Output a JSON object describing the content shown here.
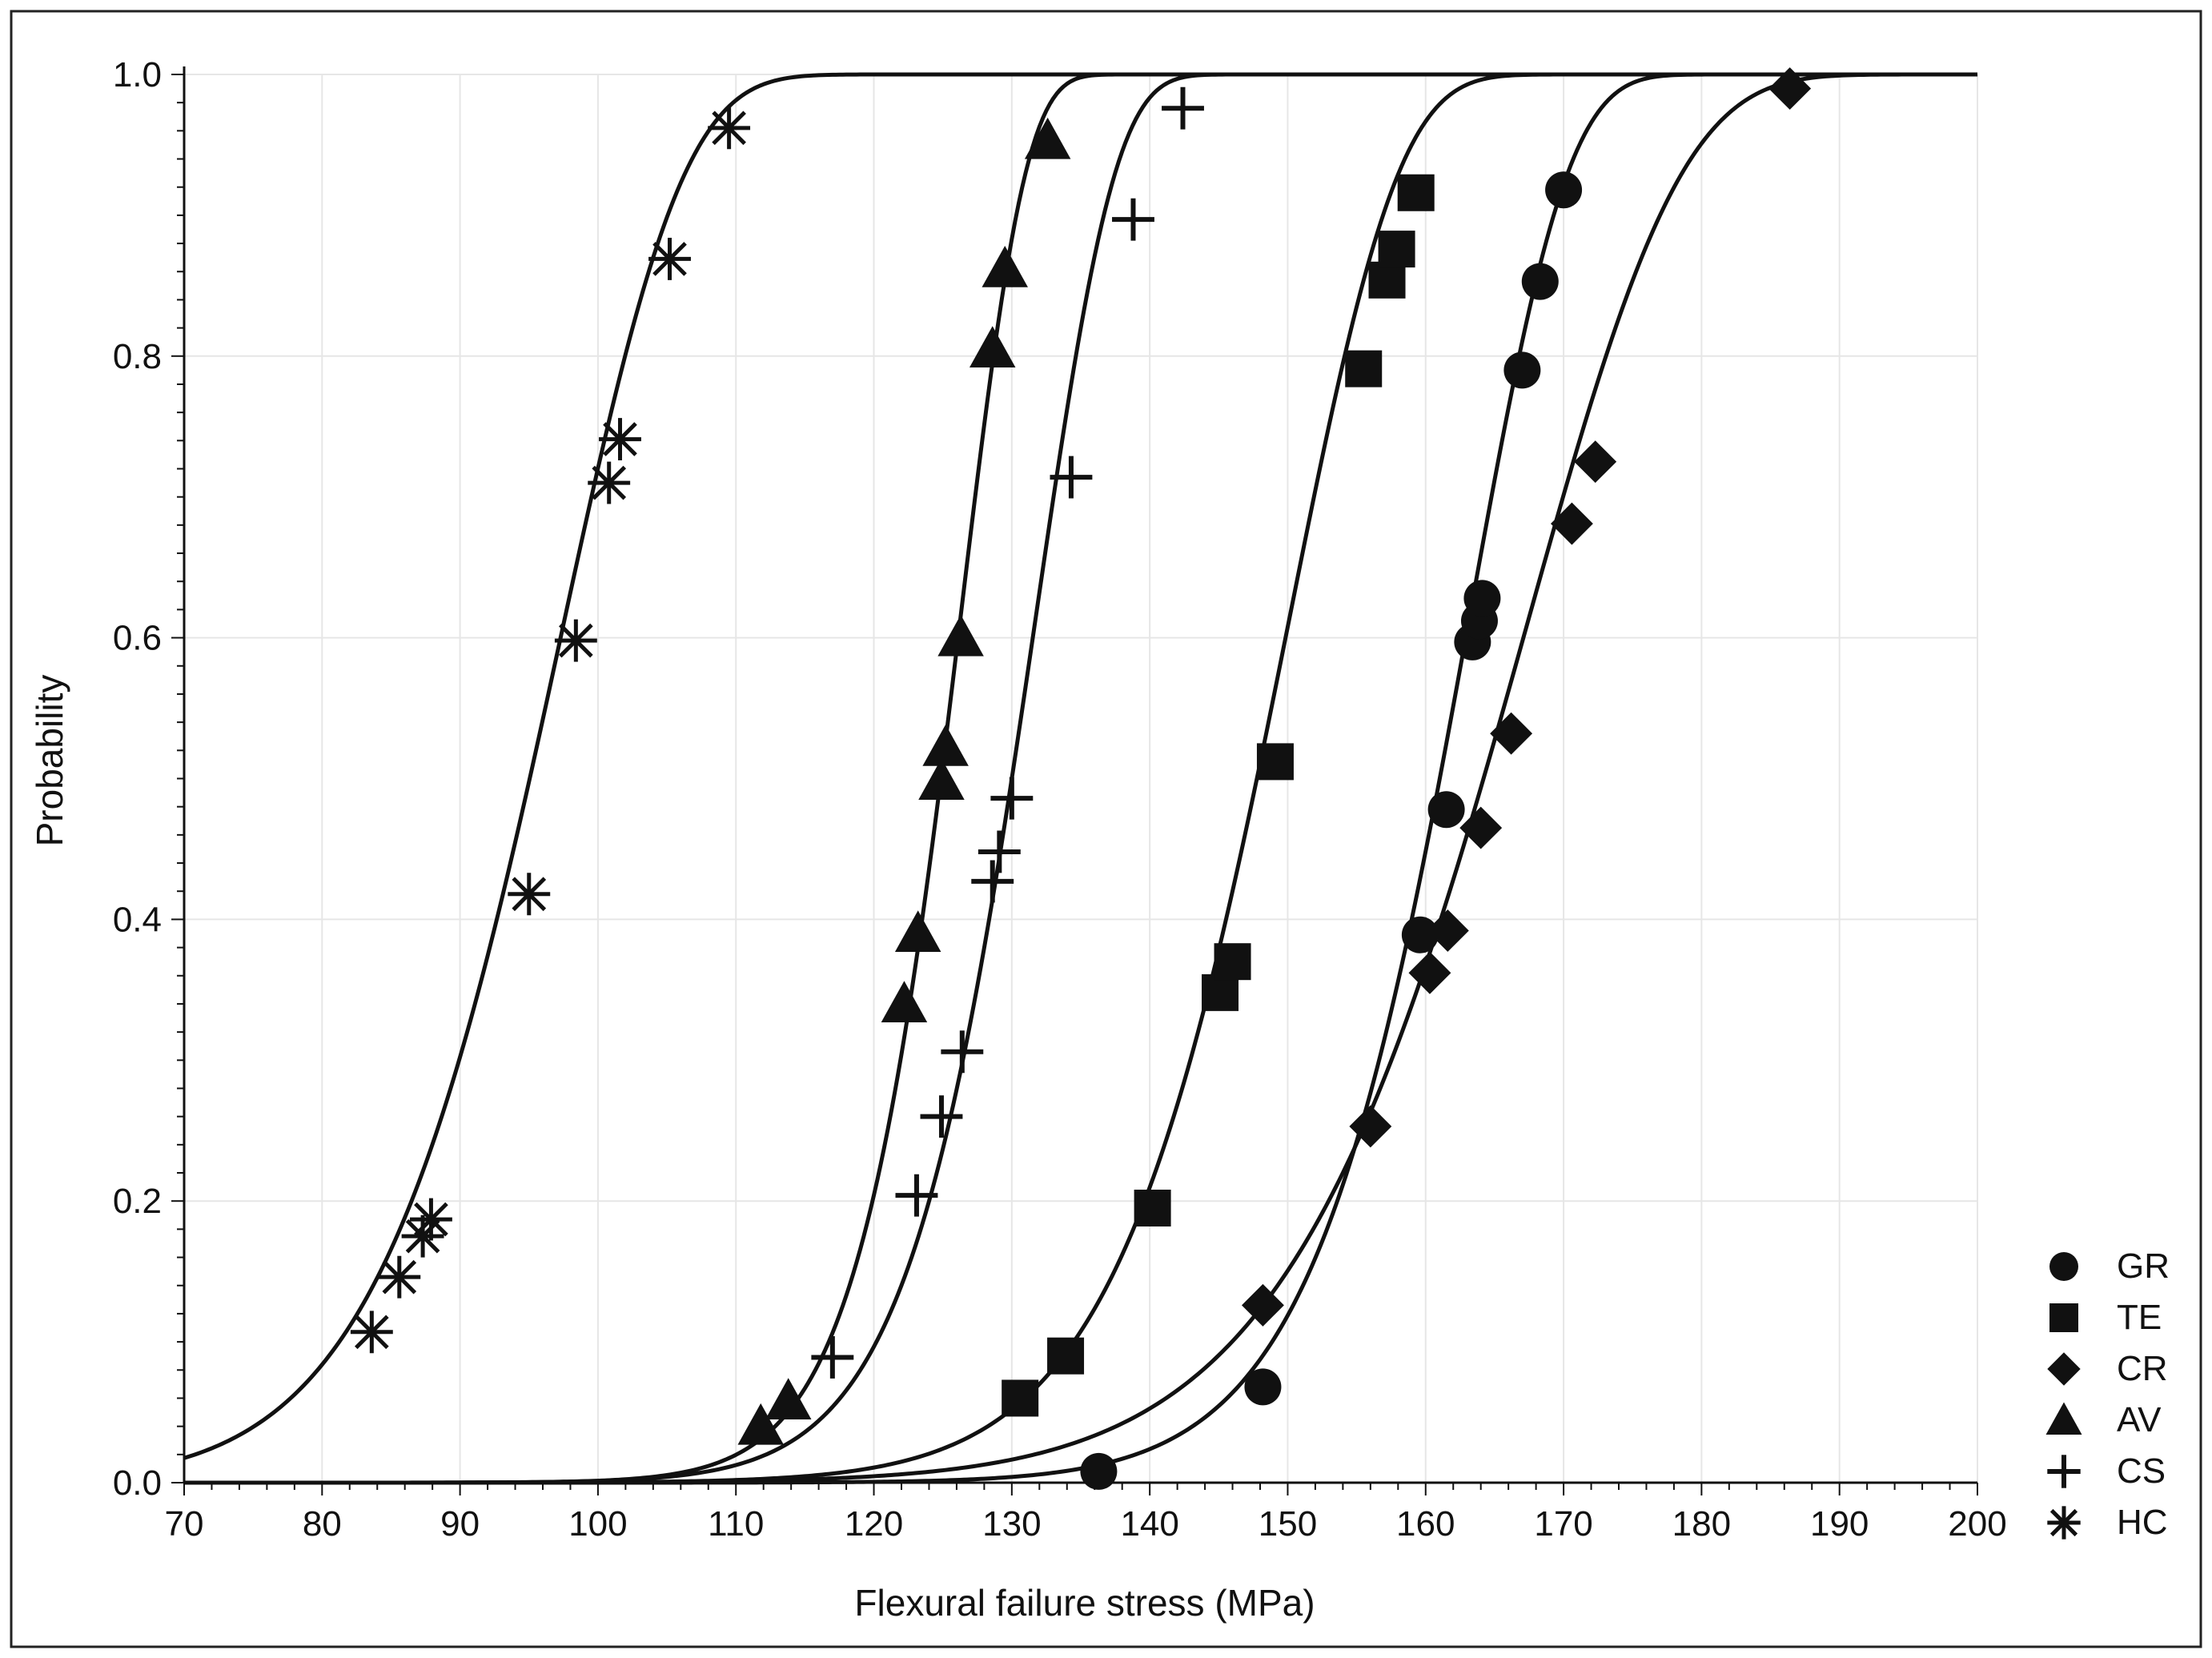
{
  "chart_data": {
    "type": "scatter",
    "xlabel": "Flexural failure stress (MPa)",
    "ylabel": "Probability",
    "xlim": [
      70,
      200
    ],
    "ylim": [
      0,
      1
    ],
    "x_ticks": [
      "70",
      "80",
      "90",
      "100",
      "110",
      "120",
      "130",
      "140",
      "150",
      "160",
      "170",
      "180",
      "190",
      "200"
    ],
    "y_ticks": [
      "0.0",
      "0.2",
      "0.4",
      "0.6",
      "0.8",
      "1.0"
    ],
    "grid": true,
    "legend_position": "bottom-right",
    "series": [
      {
        "name": "GR",
        "marker": "circle",
        "weibull": {
          "scale": 163.5,
          "shape": 24
        },
        "points": [
          [
            136.3,
            0.008
          ],
          [
            148.2,
            0.068
          ],
          [
            159.6,
            0.389
          ],
          [
            161.5,
            0.478
          ],
          [
            163.4,
            0.597
          ],
          [
            163.9,
            0.612
          ],
          [
            164.1,
            0.628
          ],
          [
            167.0,
            0.79
          ],
          [
            168.3,
            0.853
          ],
          [
            170.0,
            0.918
          ]
        ]
      },
      {
        "name": "TE",
        "marker": "square",
        "weibull": {
          "scale": 150.5,
          "shape": 20
        },
        "points": [
          [
            130.6,
            0.06
          ],
          [
            133.9,
            0.09
          ],
          [
            140.2,
            0.195
          ],
          [
            145.1,
            0.348
          ],
          [
            146.0,
            0.37
          ],
          [
            149.1,
            0.512
          ],
          [
            155.5,
            0.791
          ],
          [
            157.2,
            0.854
          ],
          [
            157.9,
            0.876
          ],
          [
            159.3,
            0.916
          ]
        ]
      },
      {
        "name": "CR",
        "marker": "diamond",
        "weibull": {
          "scale": 168.0,
          "shape": 16
        },
        "points": [
          [
            148.2,
            0.126
          ],
          [
            156.0,
            0.253
          ],
          [
            161.6,
            0.392
          ],
          [
            160.3,
            0.362
          ],
          [
            164.0,
            0.465
          ],
          [
            166.2,
            0.532
          ],
          [
            170.6,
            0.681
          ],
          [
            172.3,
            0.725
          ],
          [
            186.4,
            0.99
          ]
        ]
      },
      {
        "name": "AV",
        "marker": "triangle",
        "weibull": {
          "scale": 126.5,
          "shape": 28
        },
        "points": [
          [
            111.8,
            0.04
          ],
          [
            113.8,
            0.058
          ],
          [
            122.2,
            0.34
          ],
          [
            123.2,
            0.39
          ],
          [
            124.9,
            0.498
          ],
          [
            125.2,
            0.522
          ],
          [
            126.3,
            0.6
          ],
          [
            128.6,
            0.805
          ],
          [
            129.5,
            0.862
          ],
          [
            132.6,
            0.953
          ]
        ]
      },
      {
        "name": "CS",
        "marker": "plus",
        "weibull": {
          "scale": 132.0,
          "shape": 24
        },
        "points": [
          [
            117.0,
            0.089
          ],
          [
            123.1,
            0.204
          ],
          [
            124.9,
            0.26
          ],
          [
            126.4,
            0.306
          ],
          [
            128.6,
            0.427
          ],
          [
            129.1,
            0.448
          ],
          [
            130.0,
            0.486
          ],
          [
            134.3,
            0.714
          ],
          [
            138.8,
            0.897
          ],
          [
            142.4,
            0.976
          ]
        ]
      },
      {
        "name": "HC",
        "marker": "asterisk",
        "weibull": {
          "scale": 98.0,
          "shape": 12
        },
        "points": [
          [
            83.6,
            0.107
          ],
          [
            85.6,
            0.146
          ],
          [
            87.3,
            0.175
          ],
          [
            87.9,
            0.187
          ],
          [
            95.0,
            0.418
          ],
          [
            98.4,
            0.598
          ],
          [
            100.8,
            0.71
          ],
          [
            101.6,
            0.741
          ],
          [
            105.2,
            0.869
          ],
          [
            109.5,
            0.962
          ]
        ]
      }
    ]
  }
}
